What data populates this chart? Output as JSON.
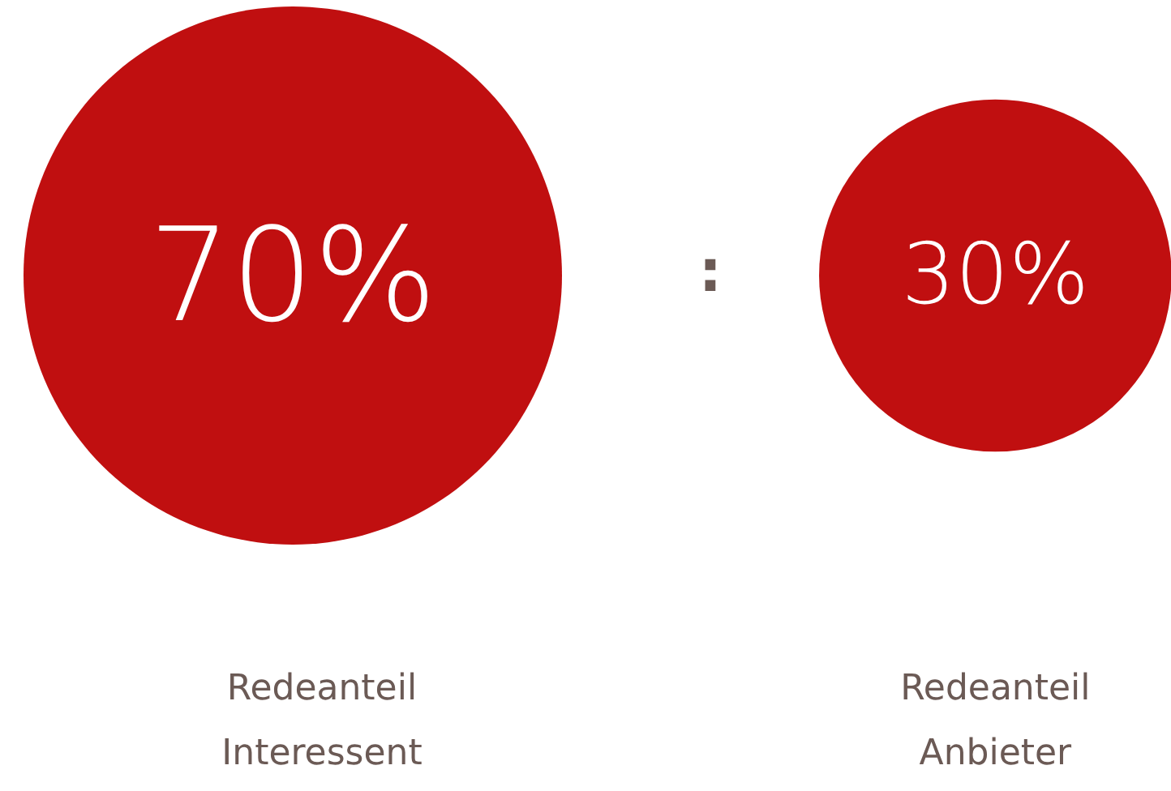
{
  "chart_data": {
    "type": "other",
    "categories": [
      "Redeanteil\nInteressent",
      "Redeanteil\nAnbieter"
    ],
    "values": [
      70,
      30
    ],
    "value_labels": [
      "70%",
      "30%"
    ],
    "colors": [
      "#c00f10",
      "#c00f10"
    ],
    "annotations": [
      ":"
    ]
  }
}
